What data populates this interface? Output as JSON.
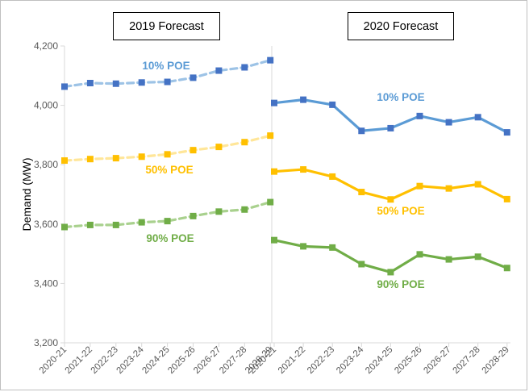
{
  "chart_data": [
    {
      "type": "line",
      "title": "2019 Forecast",
      "ylabel": "Demand (MW)",
      "ylim": [
        3200,
        4200
      ],
      "yticks": [
        "3,200",
        "3,400",
        "3,600",
        "3,800",
        "4,000",
        "4,200"
      ],
      "categories": [
        "2020-21",
        "2021-22",
        "2022-23",
        "2023-24",
        "2024-25",
        "2025-26",
        "2026-27",
        "2027-28",
        "2028-29"
      ],
      "line_style": "dashed",
      "series": [
        {
          "name": "10% POE",
          "color": "#9dc3e6",
          "marker_color": "#4472c4",
          "values": [
            4063,
            4075,
            4073,
            4077,
            4079,
            4093,
            4117,
            4128,
            4152
          ]
        },
        {
          "name": "50% POE",
          "color": "#ffe699",
          "marker_color": "#ffc000",
          "values": [
            3814,
            3819,
            3822,
            3827,
            3835,
            3849,
            3860,
            3876,
            3898
          ]
        },
        {
          "name": "90% POE",
          "color": "#a9d18e",
          "marker_color": "#70ad47",
          "values": [
            3590,
            3597,
            3597,
            3606,
            3610,
            3627,
            3642,
            3649,
            3674
          ]
        }
      ]
    },
    {
      "type": "line",
      "title": "2020 Forecast",
      "ylim": [
        3200,
        4200
      ],
      "categories": [
        "2020-21",
        "2021-22",
        "2022-23",
        "2023-24",
        "2024-25",
        "2025-26",
        "2026-27",
        "2027-28",
        "2028-29"
      ],
      "line_style": "solid",
      "series": [
        {
          "name": "10% POE",
          "color": "#5b9bd5",
          "marker_color": "#4472c4",
          "values": [
            4008,
            4019,
            4002,
            3914,
            3923,
            3964,
            3943,
            3960,
            3909
          ]
        },
        {
          "name": "50% POE",
          "color": "#ffc000",
          "marker_color": "#ffc000",
          "values": [
            3777,
            3784,
            3760,
            3708,
            3683,
            3728,
            3720,
            3734,
            3684
          ]
        },
        {
          "name": "90% POE",
          "color": "#70ad47",
          "marker_color": "#70ad47",
          "values": [
            3546,
            3525,
            3521,
            3465,
            3438,
            3498,
            3481,
            3490,
            3452
          ]
        }
      ]
    }
  ],
  "label_colors": {
    "10% POE": "#5b9bd5",
    "50% POE": "#ffc000",
    "90% POE": "#70ad47"
  }
}
